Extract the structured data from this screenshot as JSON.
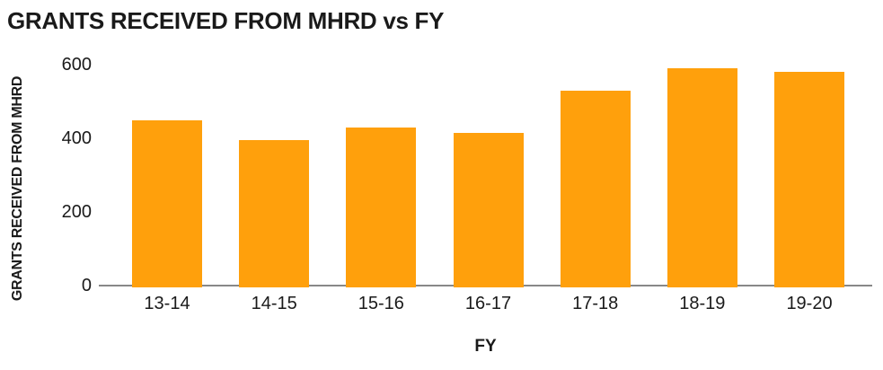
{
  "chart_data": {
    "type": "bar",
    "title": "GRANTS RECEIVED FROM MHRD vs FY",
    "xlabel": "FY",
    "ylabel": "GRANTS RECEIVED FROM MHRD",
    "categories": [
      "13-14",
      "14-15",
      "15-16",
      "16-17",
      "17-18",
      "18-19",
      "19-20"
    ],
    "values": [
      450,
      395,
      430,
      415,
      530,
      590,
      580
    ],
    "yticks": [
      0,
      200,
      400,
      600
    ],
    "ylim": [
      0,
      600
    ],
    "grid": false,
    "legend": false,
    "bar_color": "#FFA00C",
    "axis_line_color": "#888888",
    "text_color": "#1a1a1a",
    "background_color": "#ffffff"
  }
}
